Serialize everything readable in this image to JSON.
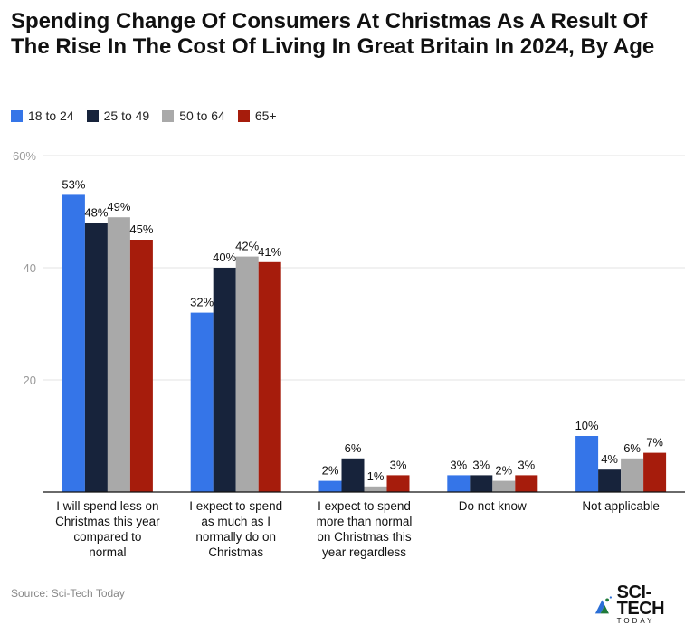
{
  "title": "Spending Change Of Consumers At Christmas As A Result Of The Rise In The Cost Of Living In Great Britain In 2024, By Age",
  "source": "Source: Sci-Tech Today",
  "logo": {
    "main": "SCI-TECH",
    "sub": "TODAY"
  },
  "chart_data": {
    "type": "bar",
    "title": "Spending Change Of Consumers At Christmas As A Result Of The Rise In The Cost Of Living In Great Britain In 2024, By Age",
    "categories": [
      "I will spend less on Christmas this year compared to normal",
      "I expect to spend as much as I normally do on Christmas",
      "I expect to spend more than normal on Christmas this year regardless",
      "Do not know",
      "Not applicable"
    ],
    "category_lines": [
      [
        "I will spend less on",
        "Christmas this year",
        "compared to",
        "normal"
      ],
      [
        "I expect to spend",
        "as much as I",
        "normally do on",
        "Christmas"
      ],
      [
        "I expect to spend",
        "more than normal",
        "on Christmas this",
        "year regardless"
      ],
      [
        "Do not know"
      ],
      [
        "Not applicable"
      ]
    ],
    "series": [
      {
        "name": "18 to 24",
        "color": "#3575e8",
        "values": [
          53,
          32,
          2,
          3,
          10
        ]
      },
      {
        "name": "25 to 49",
        "color": "#17233b",
        "values": [
          48,
          40,
          6,
          3,
          4
        ]
      },
      {
        "name": "50 to 64",
        "color": "#a9a9a9",
        "values": [
          49,
          42,
          1,
          2,
          6
        ]
      },
      {
        "name": "65+",
        "color": "#a61c0c",
        "values": [
          45,
          41,
          3,
          3,
          7
        ]
      }
    ],
    "ylim": [
      0,
      60
    ],
    "yticks": [
      {
        "value": 20,
        "label": "20"
      },
      {
        "value": 40,
        "label": "40"
      },
      {
        "value": 60,
        "label": "60%"
      }
    ],
    "value_suffix": "%",
    "grid": true,
    "legend": "top-left"
  }
}
